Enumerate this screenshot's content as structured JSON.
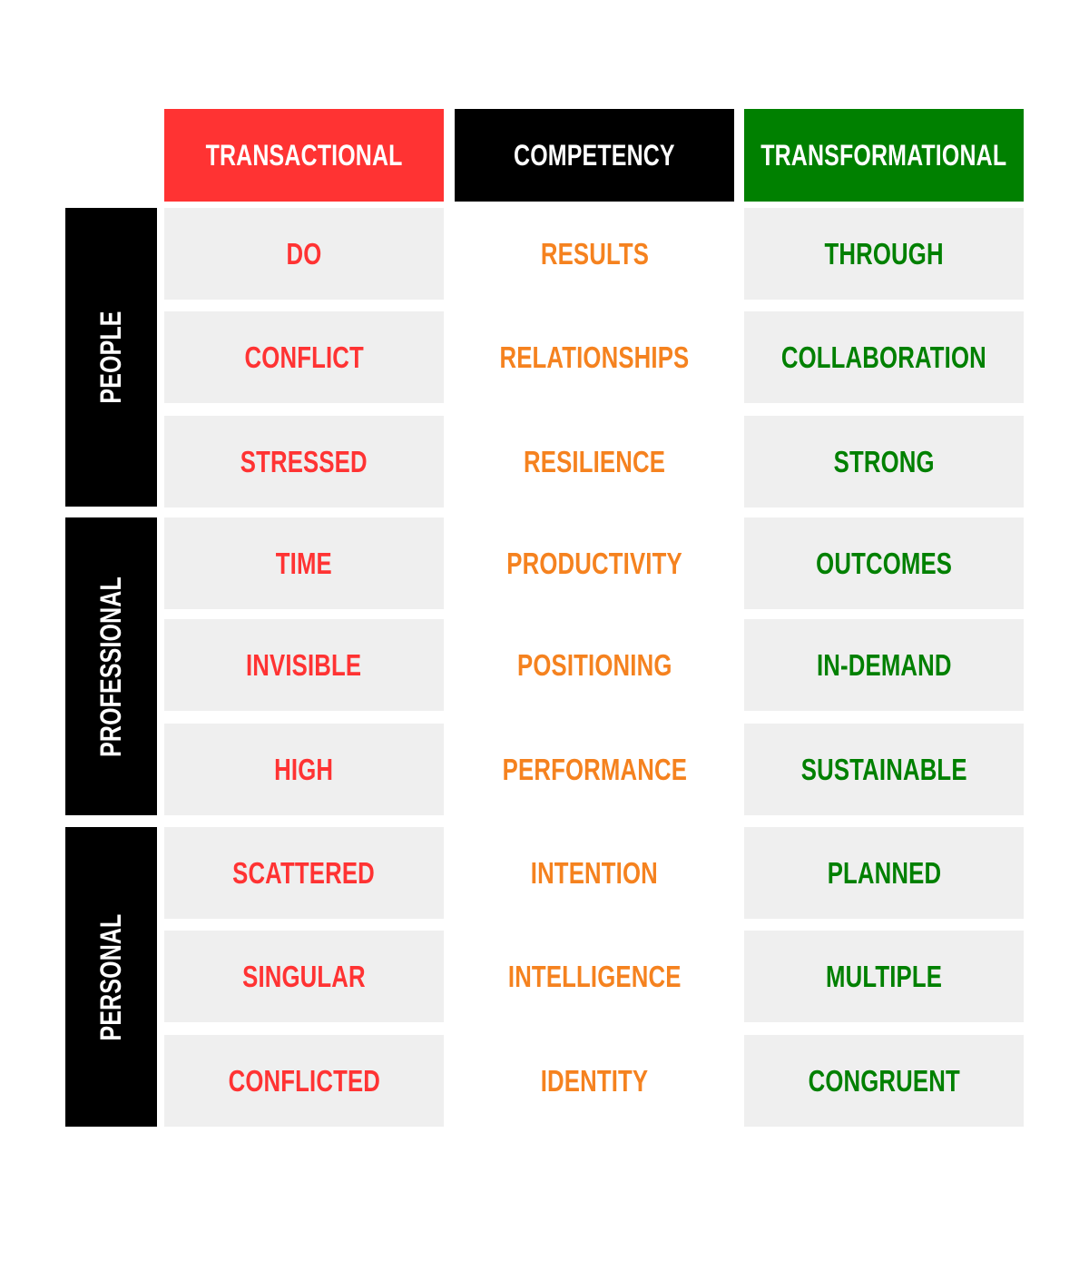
{
  "colors": {
    "transactional": "#FF3333",
    "competency": "#000000",
    "transformational": "#008000",
    "competency_text": "#F5821F",
    "cell_bg": "#EFEFEF"
  },
  "headers": [
    "TRANSACTIONAL",
    "COMPETENCY",
    "TRANSFORMATIONAL"
  ],
  "groups": [
    {
      "label": "PEOPLE",
      "rows": [
        [
          "DO",
          "RESULTS",
          "THROUGH"
        ],
        [
          "CONFLICT",
          "RELATIONSHIPS",
          "COLLABORATION"
        ],
        [
          "STRESSED",
          "RESILIENCE",
          "STRONG"
        ]
      ]
    },
    {
      "label": "PROFESSIONAL",
      "rows": [
        [
          "TIME",
          "PRODUCTIVITY",
          "OUTCOMES"
        ],
        [
          "INVISIBLE",
          "POSITIONING",
          "IN-DEMAND"
        ],
        [
          "HIGH",
          "PERFORMANCE",
          "SUSTAINABLE"
        ]
      ]
    },
    {
      "label": "PERSONAL",
      "rows": [
        [
          "SCATTERED",
          "INTENTION",
          "PLANNED"
        ],
        [
          "SINGULAR",
          "INTELLIGENCE",
          "MULTIPLE"
        ],
        [
          "CONFLICTED",
          "IDENTITY",
          "CONGRUENT"
        ]
      ]
    }
  ]
}
